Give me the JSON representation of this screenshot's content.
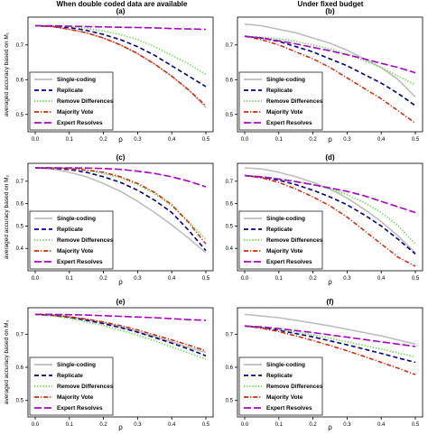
{
  "column_titles": [
    "When double coded data are available",
    "Under fixed budget"
  ],
  "ylabels": [
    "averaged accuracy based on M₁",
    "averaged accuracy based on M₂",
    "averaged accuracy based on M₃"
  ],
  "colors": {
    "Single-coding": "#bdbdbd",
    "Replicate": "#00008b",
    "Remove Differences": "#66dd44",
    "Majority Vote": "#dd2200",
    "Expert Resolves": "#aa00cc"
  },
  "chart_data": [
    {
      "panel": "(a)",
      "type": "line",
      "xlabel": "ρ",
      "ylabel": "averaged accuracy based on M₁",
      "xlim": [
        0,
        0.5
      ],
      "ylim": [
        0.45,
        0.78
      ],
      "xticks": [
        "0.0",
        "0.1",
        "0.2",
        "0.3",
        "0.4",
        "0.5"
      ],
      "yticks": [
        "0.5",
        "0.6",
        "0.7"
      ],
      "legend_position": "bottom-left",
      "x": [
        0,
        0.05,
        0.1,
        0.15,
        0.2,
        0.25,
        0.3,
        0.35,
        0.4,
        0.45,
        0.5
      ],
      "series": [
        {
          "name": "Single-coding",
          "values": [
            0.755,
            0.753,
            0.745,
            0.735,
            0.72,
            0.7,
            0.675,
            0.645,
            0.61,
            0.57,
            0.52
          ]
        },
        {
          "name": "Replicate",
          "values": [
            0.755,
            0.754,
            0.75,
            0.742,
            0.73,
            0.715,
            0.695,
            0.67,
            0.64,
            0.61,
            0.58
          ]
        },
        {
          "name": "Remove Differences",
          "values": [
            0.755,
            0.755,
            0.753,
            0.748,
            0.74,
            0.73,
            0.715,
            0.695,
            0.67,
            0.645,
            0.615
          ]
        },
        {
          "name": "Majority Vote",
          "values": [
            0.755,
            0.753,
            0.745,
            0.735,
            0.72,
            0.7,
            0.675,
            0.645,
            0.61,
            0.57,
            0.525
          ]
        },
        {
          "name": "Expert Resolves",
          "values": [
            0.755,
            0.755,
            0.754,
            0.753,
            0.752,
            0.751,
            0.75,
            0.749,
            0.747,
            0.746,
            0.745
          ]
        }
      ]
    },
    {
      "panel": "(b)",
      "type": "line",
      "xlabel": "ρ",
      "ylabel": "",
      "xlim": [
        0,
        0.5
      ],
      "ylim": [
        0.45,
        0.78
      ],
      "xticks": [
        "0.0",
        "0.1",
        "0.2",
        "0.3",
        "0.4",
        "0.5"
      ],
      "yticks": [
        "0.5",
        "0.6",
        "0.7"
      ],
      "legend_position": "bottom-left",
      "x": [
        0,
        0.05,
        0.1,
        0.15,
        0.2,
        0.25,
        0.3,
        0.35,
        0.4,
        0.45,
        0.5
      ],
      "series": [
        {
          "name": "Single-coding",
          "values": [
            0.76,
            0.755,
            0.745,
            0.735,
            0.72,
            0.705,
            0.685,
            0.66,
            0.635,
            0.6,
            0.55
          ]
        },
        {
          "name": "Replicate",
          "values": [
            0.725,
            0.72,
            0.71,
            0.695,
            0.68,
            0.66,
            0.64,
            0.615,
            0.59,
            0.56,
            0.525
          ]
        },
        {
          "name": "Remove Differences",
          "values": [
            0.725,
            0.722,
            0.718,
            0.71,
            0.7,
            0.688,
            0.673,
            0.655,
            0.635,
            0.61,
            0.585
          ]
        },
        {
          "name": "Majority Vote",
          "values": [
            0.725,
            0.715,
            0.7,
            0.68,
            0.66,
            0.635,
            0.605,
            0.575,
            0.545,
            0.51,
            0.475
          ]
        },
        {
          "name": "Expert Resolves",
          "values": [
            0.725,
            0.72,
            0.712,
            0.703,
            0.693,
            0.683,
            0.672,
            0.66,
            0.647,
            0.635,
            0.62
          ]
        }
      ]
    },
    {
      "panel": "(c)",
      "type": "line",
      "xlabel": "ρ",
      "ylabel": "averaged accuracy based on M₂",
      "xlim": [
        0,
        0.5
      ],
      "ylim": [
        0.3,
        0.78
      ],
      "xticks": [
        "0.0",
        "0.1",
        "0.2",
        "0.3",
        "0.4",
        "0.5"
      ],
      "yticks": [
        "0.4",
        "0.5",
        "0.6",
        "0.7"
      ],
      "legend_position": "bottom-left",
      "x": [
        0,
        0.05,
        0.1,
        0.15,
        0.2,
        0.25,
        0.3,
        0.35,
        0.4,
        0.45,
        0.5
      ],
      "series": [
        {
          "name": "Single-coding",
          "values": [
            0.76,
            0.755,
            0.74,
            0.72,
            0.69,
            0.655,
            0.61,
            0.56,
            0.505,
            0.445,
            0.38
          ]
        },
        {
          "name": "Replicate",
          "values": [
            0.76,
            0.758,
            0.752,
            0.74,
            0.72,
            0.695,
            0.66,
            0.615,
            0.56,
            0.48,
            0.39
          ]
        },
        {
          "name": "Remove Differences",
          "values": [
            0.76,
            0.76,
            0.756,
            0.748,
            0.735,
            0.715,
            0.685,
            0.645,
            0.59,
            0.52,
            0.44
          ]
        },
        {
          "name": "Majority Vote",
          "values": [
            0.76,
            0.76,
            0.757,
            0.75,
            0.74,
            0.72,
            0.69,
            0.65,
            0.595,
            0.515,
            0.42
          ]
        },
        {
          "name": "Expert Resolves",
          "values": [
            0.76,
            0.76,
            0.76,
            0.759,
            0.757,
            0.753,
            0.745,
            0.735,
            0.72,
            0.7,
            0.675
          ]
        }
      ]
    },
    {
      "panel": "(d)",
      "type": "line",
      "xlabel": "ρ",
      "ylabel": "",
      "xlim": [
        0,
        0.5
      ],
      "ylim": [
        0.3,
        0.78
      ],
      "xticks": [
        "0.0",
        "0.1",
        "0.2",
        "0.3",
        "0.4",
        "0.5"
      ],
      "yticks": [
        "0.4",
        "0.5",
        "0.6",
        "0.7"
      ],
      "legend_position": "bottom-left",
      "x": [
        0,
        0.05,
        0.1,
        0.15,
        0.2,
        0.25,
        0.3,
        0.35,
        0.4,
        0.45,
        0.5
      ],
      "series": [
        {
          "name": "Single-coding",
          "values": [
            0.76,
            0.755,
            0.74,
            0.72,
            0.695,
            0.665,
            0.625,
            0.575,
            0.52,
            0.455,
            0.38
          ]
        },
        {
          "name": "Replicate",
          "values": [
            0.725,
            0.718,
            0.705,
            0.685,
            0.66,
            0.63,
            0.595,
            0.55,
            0.5,
            0.44,
            0.375
          ]
        },
        {
          "name": "Remove Differences",
          "values": [
            0.725,
            0.72,
            0.712,
            0.7,
            0.685,
            0.665,
            0.64,
            0.605,
            0.56,
            0.5,
            0.42
          ]
        },
        {
          "name": "Majority Vote",
          "values": [
            0.725,
            0.715,
            0.695,
            0.665,
            0.63,
            0.59,
            0.54,
            0.48,
            0.42,
            0.36,
            0.32
          ]
        },
        {
          "name": "Expert Resolves",
          "values": [
            0.725,
            0.72,
            0.71,
            0.698,
            0.685,
            0.67,
            0.655,
            0.635,
            0.61,
            0.585,
            0.56
          ]
        }
      ]
    },
    {
      "panel": "(e)",
      "type": "line",
      "xlabel": "ρ",
      "ylabel": "averaged accuracy based on M₃",
      "xlim": [
        0,
        0.5
      ],
      "ylim": [
        0.45,
        0.78
      ],
      "xticks": [
        "0.0",
        "0.1",
        "0.2",
        "0.3",
        "0.4",
        "0.5"
      ],
      "yticks": [
        "0.5",
        "0.6",
        "0.7"
      ],
      "legend_position": "bottom-left",
      "x": [
        0,
        0.05,
        0.1,
        0.15,
        0.2,
        0.25,
        0.3,
        0.35,
        0.4,
        0.45,
        0.5
      ],
      "series": [
        {
          "name": "Single-coding",
          "values": [
            0.76,
            0.758,
            0.752,
            0.745,
            0.735,
            0.722,
            0.708,
            0.693,
            0.677,
            0.66,
            0.645
          ]
        },
        {
          "name": "Replicate",
          "values": [
            0.76,
            0.757,
            0.751,
            0.742,
            0.732,
            0.72,
            0.706,
            0.69,
            0.673,
            0.655,
            0.635
          ]
        },
        {
          "name": "Remove Differences",
          "values": [
            0.76,
            0.755,
            0.748,
            0.738,
            0.726,
            0.712,
            0.697,
            0.68,
            0.662,
            0.643,
            0.625
          ]
        },
        {
          "name": "Majority Vote",
          "values": [
            0.76,
            0.758,
            0.753,
            0.746,
            0.737,
            0.726,
            0.713,
            0.698,
            0.683,
            0.667,
            0.65
          ]
        },
        {
          "name": "Expert Resolves",
          "values": [
            0.76,
            0.76,
            0.759,
            0.758,
            0.756,
            0.754,
            0.752,
            0.75,
            0.747,
            0.744,
            0.742
          ]
        }
      ]
    },
    {
      "panel": "(f)",
      "type": "line",
      "xlabel": "ρ",
      "ylabel": "",
      "xlim": [
        0,
        0.5
      ],
      "ylim": [
        0.45,
        0.78
      ],
      "xticks": [
        "0.0",
        "0.1",
        "0.2",
        "0.3",
        "0.4",
        "0.5"
      ],
      "yticks": [
        "0.5",
        "0.6",
        "0.7"
      ],
      "legend_position": "bottom-left",
      "x": [
        0,
        0.05,
        0.1,
        0.15,
        0.2,
        0.25,
        0.3,
        0.35,
        0.4,
        0.45,
        0.5
      ],
      "series": [
        {
          "name": "Single-coding",
          "values": [
            0.76,
            0.755,
            0.75,
            0.742,
            0.734,
            0.725,
            0.715,
            0.705,
            0.695,
            0.683,
            0.67
          ]
        },
        {
          "name": "Replicate",
          "values": [
            0.725,
            0.72,
            0.712,
            0.702,
            0.692,
            0.68,
            0.668,
            0.655,
            0.642,
            0.628,
            0.615
          ]
        },
        {
          "name": "Remove Differences",
          "values": [
            0.725,
            0.721,
            0.715,
            0.707,
            0.698,
            0.688,
            0.677,
            0.666,
            0.655,
            0.643,
            0.632
          ]
        },
        {
          "name": "Majority Vote",
          "values": [
            0.725,
            0.718,
            0.708,
            0.695,
            0.681,
            0.666,
            0.65,
            0.633,
            0.615,
            0.597,
            0.578
          ]
        },
        {
          "name": "Expert Resolves",
          "values": [
            0.725,
            0.722,
            0.717,
            0.711,
            0.705,
            0.698,
            0.691,
            0.684,
            0.677,
            0.67,
            0.663
          ]
        }
      ]
    }
  ]
}
